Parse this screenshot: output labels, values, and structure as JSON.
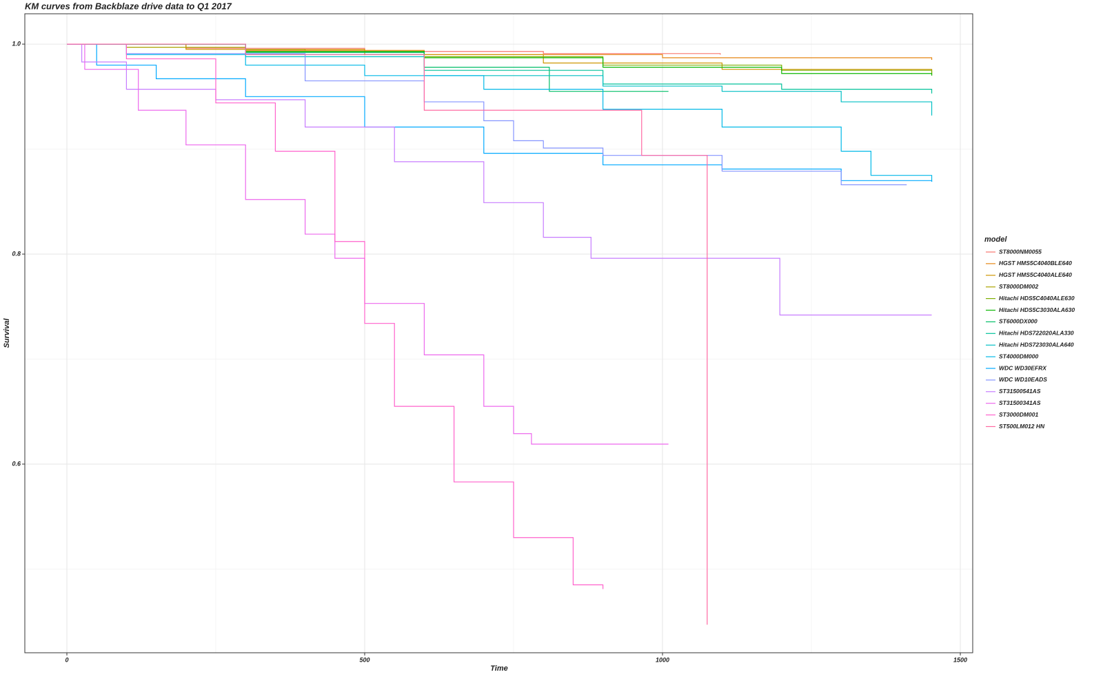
{
  "chart_data": {
    "type": "line",
    "step": true,
    "title": "KM curves from Backblaze drive data to Q1 2017",
    "x_label": "Time",
    "y_label": "Survival",
    "legend_title": "model",
    "legend": "right",
    "grid": true,
    "xlim": [
      -70.6,
      1520.8
    ],
    "ylim": [
      0.4203,
      1.0289
    ],
    "xticks": [
      0,
      500,
      1000,
      1500
    ],
    "yticks": [
      {
        "value": 0.6,
        "label": "0.6"
      },
      {
        "value": 0.8,
        "label": "0.8"
      },
      {
        "value": 1.0,
        "label": "1.0"
      }
    ],
    "minor_xticks": [
      250,
      750,
      1250
    ],
    "minor_yticks": [
      0.5,
      0.7,
      0.9
    ],
    "series": [
      {
        "name": "ST8000NM0055",
        "color": "#F8766D",
        "x": [
          0,
          200,
          500,
          800,
          1097
        ],
        "values": [
          1,
          0.996,
          0.993,
          0.991,
          0.99
        ]
      },
      {
        "name": "HGST HMS5C4040BLE640",
        "color": "#E68613",
        "x": [
          0,
          300,
          600,
          1000,
          1452
        ],
        "values": [
          1,
          0.994,
          0.99,
          0.987,
          0.985
        ]
      },
      {
        "name": "HGST HMS5C4040ALE640",
        "color": "#CD9600",
        "x": [
          0,
          200,
          500,
          800,
          1100,
          1452
        ],
        "values": [
          1,
          0.995,
          0.99,
          0.982,
          0.976,
          0.97
        ]
      },
      {
        "name": "ST8000DM002",
        "color": "#ABA300",
        "x": [
          0,
          100,
          300,
          400
        ],
        "values": [
          1,
          0.997,
          0.995,
          0.994
        ]
      },
      {
        "name": "Hitachi HDS5C4040ALE630",
        "color": "#7CAE00",
        "x": [
          0,
          300,
          600,
          900,
          1200,
          1452
        ],
        "values": [
          1,
          0.993,
          0.988,
          0.98,
          0.975,
          0.972
        ]
      },
      {
        "name": "Hitachi HDS5C3030ALA630",
        "color": "#0CB702",
        "x": [
          0,
          300,
          600,
          900,
          1200,
          1452
        ],
        "values": [
          1,
          0.993,
          0.987,
          0.978,
          0.972,
          0.97
        ]
      },
      {
        "name": "ST6000DX000",
        "color": "#00BE67",
        "x": [
          0,
          300,
          600,
          810,
          1010
        ],
        "values": [
          1,
          0.992,
          0.978,
          0.955,
          0.955
        ]
      },
      {
        "name": "Hitachi HDS722020ALA330",
        "color": "#00C19A",
        "x": [
          0,
          300,
          600,
          900,
          1200,
          1452
        ],
        "values": [
          1,
          0.99,
          0.975,
          0.962,
          0.957,
          0.953
        ]
      },
      {
        "name": "Hitachi HDS723030ALA640",
        "color": "#00BFC4",
        "x": [
          0,
          300,
          600,
          900,
          1100,
          1300,
          1452
        ],
        "values": [
          1,
          0.988,
          0.97,
          0.96,
          0.955,
          0.945,
          0.932
        ]
      },
      {
        "name": "ST4000DM000",
        "color": "#00B8E7",
        "x": [
          0,
          100,
          300,
          500,
          700,
          900,
          1100,
          1300,
          1350,
          1452
        ],
        "values": [
          1,
          0.99,
          0.98,
          0.97,
          0.957,
          0.938,
          0.921,
          0.898,
          0.875,
          0.869
        ]
      },
      {
        "name": "WDC WD30EFRX",
        "color": "#00A9FF",
        "x": [
          0,
          50,
          150,
          300,
          500,
          700,
          900,
          1100,
          1300,
          1452
        ],
        "values": [
          1,
          0.98,
          0.967,
          0.95,
          0.921,
          0.896,
          0.885,
          0.881,
          0.87,
          0.869
        ]
      },
      {
        "name": "WDC WD10EADS",
        "color": "#8494FF",
        "x": [
          0,
          100,
          400,
          600,
          700,
          750,
          800,
          900,
          1100,
          1300,
          1410
        ],
        "values": [
          1,
          0.991,
          0.965,
          0.945,
          0.927,
          0.908,
          0.901,
          0.894,
          0.879,
          0.866,
          0.866
        ]
      },
      {
        "name": "ST31500541AS",
        "color": "#C77CFF",
        "x": [
          0,
          25,
          100,
          250,
          400,
          550,
          700,
          800,
          880,
          1197,
          1452
        ],
        "values": [
          1,
          0.983,
          0.957,
          0.947,
          0.921,
          0.888,
          0.849,
          0.816,
          0.796,
          0.742,
          0.742
        ]
      },
      {
        "name": "ST31500341AS",
        "color": "#ED68ED",
        "x": [
          0,
          30,
          120,
          200,
          300,
          400,
          450,
          500,
          600,
          700,
          750,
          780,
          1010
        ],
        "values": [
          1,
          0.976,
          0.937,
          0.904,
          0.852,
          0.819,
          0.796,
          0.753,
          0.704,
          0.655,
          0.629,
          0.619,
          0.619
        ]
      },
      {
        "name": "ST3000DM001",
        "color": "#FF61CC",
        "x": [
          0,
          100,
          250,
          350,
          450,
          500,
          550,
          650,
          750,
          850,
          900
        ],
        "values": [
          1,
          0.986,
          0.944,
          0.898,
          0.812,
          0.734,
          0.655,
          0.583,
          0.53,
          0.485,
          0.481
        ]
      },
      {
        "name": "ST500LM012 HN",
        "color": "#FF68A1",
        "x": [
          0,
          300,
          600,
          965,
          1075
        ],
        "values": [
          1,
          0.99,
          0.937,
          0.894,
          0.447
        ]
      }
    ]
  }
}
